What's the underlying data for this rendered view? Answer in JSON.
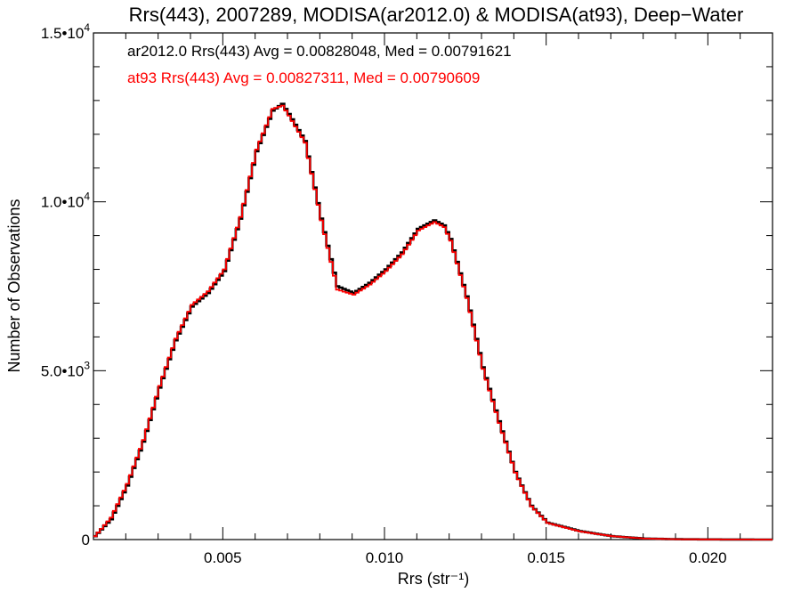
{
  "chart_data": {
    "type": "line",
    "title": "Rrs(443), 2007289, MODISA(ar2012.0) & MODISA(at93), Deep−Water",
    "xlabel": "Rrs (str⁻¹)",
    "ylabel": "Number of Observations",
    "xlim": [
      0.001,
      0.022
    ],
    "ylim": [
      0,
      15000
    ],
    "x_ticks": [
      {
        "value": 0.005,
        "label": "0.005"
      },
      {
        "value": 0.01,
        "label": "0.010"
      },
      {
        "value": 0.015,
        "label": "0.015"
      },
      {
        "value": 0.02,
        "label": "0.020"
      }
    ],
    "y_ticks": [
      {
        "value": 0,
        "base": "0",
        "exp": ""
      },
      {
        "value": 5000,
        "base": "5.0•10",
        "exp": "3"
      },
      {
        "value": 10000,
        "base": "1.0•10",
        "exp": "4"
      },
      {
        "value": 15000,
        "base": "1.5•10",
        "exp": "4"
      }
    ],
    "annotations": [
      {
        "text": "ar2012.0 Rrs(443) Avg = 0.00828048, Med = 0.00791621",
        "color": "#000000"
      },
      {
        "text": "at93 Rrs(443) Avg = 0.00827311, Med = 0.00790609",
        "color": "#ff0000"
      }
    ],
    "series": [
      {
        "color": "#000000",
        "x": [
          0.001,
          0.0015,
          0.002,
          0.0025,
          0.003,
          0.0035,
          0.004,
          0.0045,
          0.005,
          0.0055,
          0.006,
          0.0065,
          0.0068,
          0.007,
          0.0075,
          0.008,
          0.0085,
          0.009,
          0.0095,
          0.01,
          0.0105,
          0.011,
          0.0115,
          0.0118,
          0.012,
          0.0125,
          0.013,
          0.0135,
          0.014,
          0.0145,
          0.015,
          0.016,
          0.017,
          0.018,
          0.019,
          0.02,
          0.021,
          0.022
        ],
        "values": [
          100,
          600,
          1600,
          2900,
          4500,
          5900,
          6900,
          7300,
          7950,
          9500,
          11500,
          12700,
          12900,
          12600,
          11800,
          9500,
          7500,
          7300,
          7600,
          8000,
          8500,
          9200,
          9450,
          9300,
          8900,
          7200,
          5100,
          3500,
          2000,
          1000,
          500,
          250,
          100,
          30,
          10,
          5,
          2,
          0
        ]
      },
      {
        "color": "#ff0000",
        "x": [
          0.001,
          0.0015,
          0.002,
          0.0025,
          0.003,
          0.0035,
          0.004,
          0.0045,
          0.005,
          0.0055,
          0.006,
          0.0065,
          0.0068,
          0.007,
          0.0075,
          0.008,
          0.0085,
          0.009,
          0.0095,
          0.01,
          0.0105,
          0.011,
          0.0115,
          0.0118,
          0.012,
          0.0125,
          0.013,
          0.0135,
          0.014,
          0.0145,
          0.015,
          0.016,
          0.017,
          0.018,
          0.019,
          0.02,
          0.021,
          0.022
        ],
        "values": [
          100,
          650,
          1650,
          2950,
          4550,
          5950,
          6950,
          7350,
          8000,
          9550,
          11550,
          12750,
          12850,
          12550,
          11750,
          9450,
          7400,
          7250,
          7550,
          7950,
          8450,
          9150,
          9400,
          9250,
          8850,
          7150,
          5050,
          3450,
          1980,
          980,
          490,
          240,
          100,
          30,
          10,
          5,
          2,
          0
        ]
      }
    ]
  }
}
